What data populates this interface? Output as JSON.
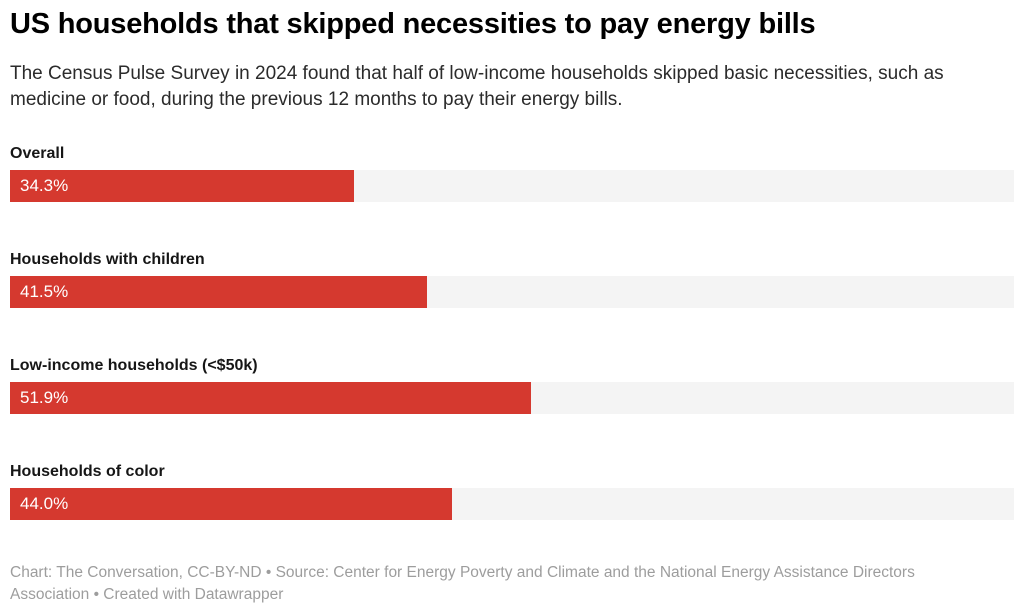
{
  "header": {
    "title": "US households that skipped necessities to pay energy bills",
    "subtitle": "The Census Pulse Survey in 2024 found that half of low-income households skipped basic necessities, such as medicine or food, during the previous 12 months to pay their energy bills."
  },
  "chart_data": {
    "type": "bar",
    "orientation": "horizontal",
    "categories": [
      "Overall",
      "Households with children",
      "Low-income households (<$50k)",
      "Households of color"
    ],
    "values": [
      34.3,
      41.5,
      51.9,
      44.0
    ],
    "value_labels": [
      "34.3%",
      "41.5%",
      "51.9%",
      "44.0%"
    ],
    "xlim": [
      0,
      100
    ],
    "grid": false,
    "legend": false,
    "bar_color": "#d5392f",
    "track_color": "#f4f4f4",
    "value_label_color": "#ffffff"
  },
  "footer": {
    "text": "Chart: The Conversation, CC-BY-ND • Source: Center for Energy Poverty and Climate and the National Energy Assistance Directors Association • Created with Datawrapper"
  }
}
